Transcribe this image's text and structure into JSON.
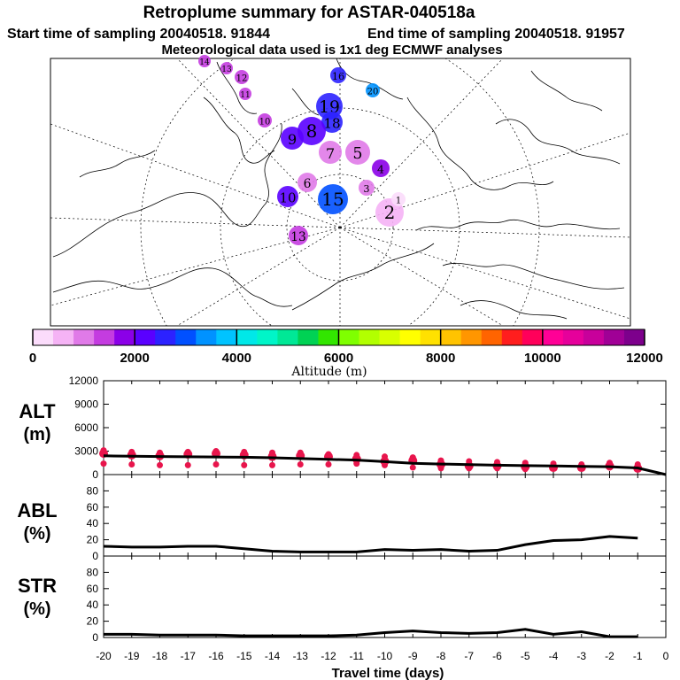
{
  "header": {
    "title": "Retroplume summary for ASTAR-040518a",
    "start_time": "Start time of sampling 20040518. 91844",
    "end_time": "End time of sampling 20040518. 91957",
    "met_data": "Meteorological data used is 1x1 deg ECMWF analyses"
  },
  "colors": {
    "accent": "#e8154c",
    "line": "#000000",
    "colorbar": [
      "#fbdcfb",
      "#f5b3f5",
      "#e07ae8",
      "#c43ce0",
      "#8b00e8",
      "#5a00ff",
      "#2c22ff",
      "#0050ff",
      "#0092ff",
      "#00c3ff",
      "#00e8e8",
      "#00f5c8",
      "#00e896",
      "#00d254",
      "#32e600",
      "#7fff00",
      "#b2ff00",
      "#d8ff00",
      "#ffff00",
      "#ffe100",
      "#ffc300",
      "#ff9600",
      "#ff6400",
      "#ff1e1e",
      "#ff005a",
      "#ff0096",
      "#e6009b",
      "#c8009b",
      "#a00096",
      "#7d008c"
    ]
  },
  "chart_data": [
    {
      "type": "map",
      "title": "Retroplume summary for ASTAR-040518a",
      "projection": "polar stereographic, North Pole",
      "colorbar": {
        "label": "Altitude (m)",
        "ticks": [
          0,
          2000,
          4000,
          6000,
          8000,
          10000,
          12000
        ],
        "range": [
          0,
          12000
        ]
      },
      "plume_labels": [
        {
          "day": 14,
          "alt_m": 1200
        },
        {
          "day": 13,
          "alt_m": 1200
        },
        {
          "day": 12,
          "alt_m": 1200
        },
        {
          "day": 11,
          "alt_m": 1200
        },
        {
          "day": 16,
          "alt_m": 2600
        },
        {
          "day": 20,
          "alt_m": 3200
        },
        {
          "day": 19,
          "alt_m": 2600
        },
        {
          "day": 18,
          "alt_m": 2400
        },
        {
          "day": 10,
          "alt_m": 1500
        },
        {
          "day": 9,
          "alt_m": 2200
        },
        {
          "day": 8,
          "alt_m": 2000
        },
        {
          "day": 7,
          "alt_m": 1000
        },
        {
          "day": 5,
          "alt_m": 800
        },
        {
          "day": 4,
          "alt_m": 1600
        },
        {
          "day": 3,
          "alt_m": 800
        },
        {
          "day": 2,
          "alt_m": 500
        },
        {
          "day": 1,
          "alt_m": 300
        },
        {
          "day": 15,
          "alt_m": 2800
        },
        {
          "day": 13,
          "alt_m": 1500
        },
        {
          "day": 10,
          "alt_m": 2100
        },
        {
          "day": 6,
          "alt_m": 800
        }
      ]
    },
    {
      "type": "line",
      "label": "ALT",
      "unit": "(m)",
      "ylim": [
        0,
        12000
      ],
      "yticks": [
        0,
        3000,
        6000,
        9000,
        12000
      ],
      "x": [
        -20,
        -19,
        -18,
        -17,
        -16,
        -15,
        -14,
        -13,
        -12,
        -11,
        -10,
        -9,
        -8,
        -7,
        -6,
        -5,
        -4,
        -3,
        -2,
        -1,
        0
      ],
      "mean_altitude": [
        2400,
        2350,
        2300,
        2280,
        2250,
        2220,
        2150,
        2050,
        1950,
        1850,
        1650,
        1450,
        1350,
        1280,
        1200,
        1150,
        1100,
        1050,
        1000,
        850,
        0
      ],
      "plume_points": [
        [
          3100,
          2700,
          1400
        ],
        [
          2900,
          2500,
          1300
        ],
        [
          2800,
          2400,
          1200
        ],
        [
          2900,
          2600,
          1200
        ],
        [
          3000,
          2700,
          1300
        ],
        [
          2900,
          2500,
          1200
        ],
        [
          2800,
          2300,
          1200
        ],
        [
          2800,
          2400,
          1300
        ],
        [
          2600,
          2300,
          1300
        ],
        [
          2500,
          2000,
          1400
        ],
        [
          2300,
          1700,
          1200
        ],
        [
          2200,
          1800,
          900
        ],
        [
          1800,
          1300,
          800
        ],
        [
          1700,
          1100,
          800
        ],
        [
          1600,
          1100,
          800
        ],
        [
          1500,
          1000,
          700
        ],
        [
          1400,
          900,
          800
        ],
        [
          1300,
          900,
          800
        ],
        [
          1500,
          1100,
          900
        ],
        [
          1300,
          800,
          700
        ]
      ]
    },
    {
      "type": "line",
      "label": "ABL",
      "unit": "(%)",
      "ylim": [
        0,
        100
      ],
      "yticks": [
        0,
        20,
        40,
        60,
        80
      ],
      "x": [
        -20,
        -19,
        -18,
        -17,
        -16,
        -15,
        -14,
        -13,
        -12,
        -11,
        -10,
        -9,
        -8,
        -7,
        -6,
        -5,
        -4,
        -3,
        -2,
        -1
      ],
      "values": [
        12,
        11,
        11,
        12,
        12,
        9,
        6,
        5,
        5,
        5,
        8,
        7,
        8,
        6,
        7,
        14,
        19,
        20,
        24,
        22
      ]
    },
    {
      "type": "line",
      "label": "STR",
      "unit": "(%)",
      "ylim": [
        0,
        100
      ],
      "yticks": [
        0,
        20,
        40,
        60,
        80
      ],
      "xlabel": "Travel time (days)",
      "xticks": [
        -20,
        -19,
        -18,
        -17,
        -16,
        -15,
        -14,
        -13,
        -12,
        -11,
        -10,
        -9,
        -8,
        -7,
        -6,
        -5,
        -4,
        -3,
        -2,
        -1,
        0
      ],
      "x": [
        -20,
        -19,
        -18,
        -17,
        -16,
        -15,
        -14,
        -13,
        -12,
        -11,
        -10,
        -9,
        -8,
        -7,
        -6,
        -5,
        -4,
        -3,
        -2,
        -1
      ],
      "values": [
        4,
        4,
        3,
        3,
        3,
        2,
        2,
        2,
        2,
        3,
        6,
        8,
        6,
        5,
        6,
        10,
        4,
        7,
        1,
        1
      ]
    }
  ]
}
